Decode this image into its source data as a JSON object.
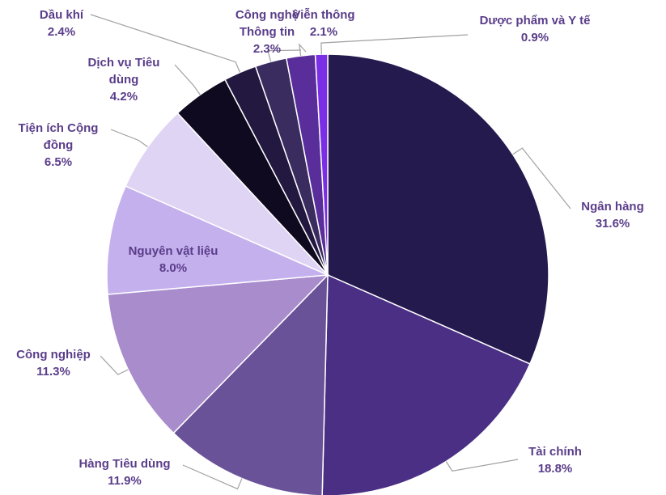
{
  "chart_data": {
    "type": "pie",
    "categories": [
      "Ngân hàng",
      "Tài chính",
      "Hàng Tiêu dùng",
      "Công nghiệp",
      "Nguyên vật liệu",
      "Tiện ích Cộng đồng",
      "Dịch vụ Tiêu dùng",
      "Dầu khí",
      "Công nghệ Thông tin",
      "Viễn thông",
      "Dược phẩm và Y tế"
    ],
    "values": [
      31.6,
      18.8,
      11.9,
      11.3,
      8.0,
      6.5,
      4.2,
      2.4,
      2.3,
      2.1,
      0.9
    ],
    "value_labels": [
      "31.6%",
      "18.8%",
      "11.9%",
      "11.3%",
      "8.0%",
      "6.5%",
      "4.2%",
      "2.4%",
      "2.3%",
      "2.1%",
      "0.9%"
    ],
    "colors": [
      "#251a4e",
      "#4a2f85",
      "#6a5299",
      "#a98ccc",
      "#c5b0ee",
      "#e0d4f5",
      "#0f0a1f",
      "#221840",
      "#3a2c5e",
      "#5a2e9a",
      "#7a2ee6"
    ]
  }
}
